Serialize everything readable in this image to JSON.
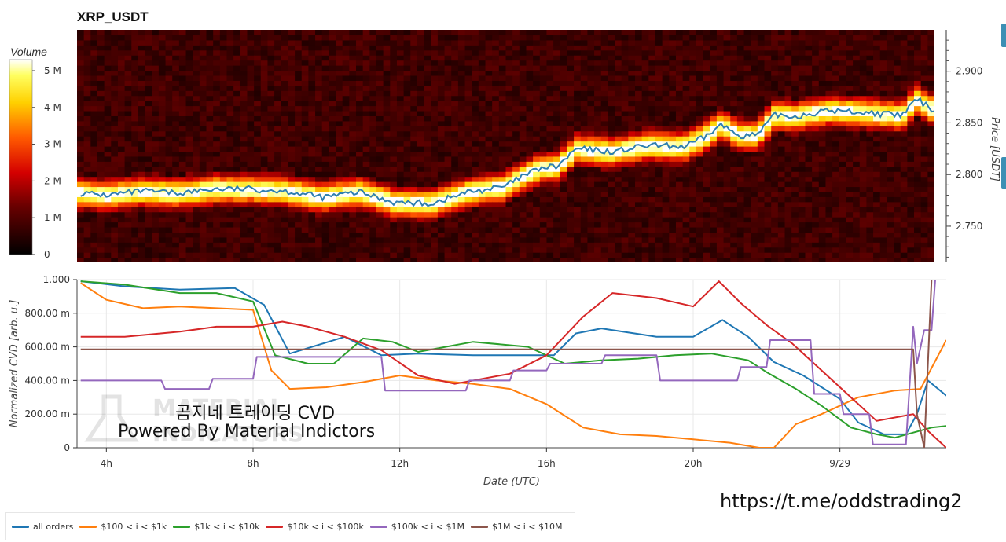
{
  "title": "XRP_USDT",
  "colorbar": {
    "title": "Volume",
    "ticks": [
      "0",
      "1 M",
      "2 M",
      "3 M",
      "4 M",
      "5 M"
    ],
    "tick_values": [
      0,
      1,
      2,
      3,
      4,
      5
    ]
  },
  "top_axis": {
    "label": "Price [USDT]",
    "ticks": [
      "2.750",
      "2.800",
      "2.850",
      "2.900"
    ],
    "tick_values": [
      2.75,
      2.8,
      2.85,
      2.9
    ],
    "ylim": [
      2.715,
      2.94
    ]
  },
  "bottom_axis": {
    "ylabel": "Normalized CVD [arb. u.]",
    "xlabel": "Date (UTC)",
    "yticks": [
      "0",
      "200.00 m",
      "400.00 m",
      "600.00 m",
      "800.00 m",
      "1.000"
    ],
    "ytick_values": [
      0,
      0.2,
      0.4,
      0.6,
      0.8,
      1.0
    ],
    "xticks": [
      "4h",
      "8h",
      "12h",
      "16h",
      "20h",
      "9/29"
    ],
    "xtick_hours": [
      4,
      8,
      12,
      16,
      20,
      24
    ],
    "xlim_hours": [
      3.2,
      26.9
    ],
    "ylim": [
      0,
      1.0
    ]
  },
  "watermark": {
    "line1": "곰지네 트레이딩 CVD",
    "line2": "Powered By Material Indictors"
  },
  "link": "https://t.me/oddstrading2",
  "legend": [
    {
      "label": "all orders",
      "color": "#1f77b4"
    },
    {
      "label": "$100 < i < $1k",
      "color": "#ff7f0e"
    },
    {
      "label": "$1k < i < $10k",
      "color": "#2ca02c"
    },
    {
      "label": "$10k < i < $100k",
      "color": "#d62728"
    },
    {
      "label": "$100k < i < $1M",
      "color": "#9467bd"
    },
    {
      "label": "$1M < i < $10M",
      "color": "#8c564b"
    }
  ],
  "chart_data": [
    {
      "type": "heatmap",
      "title": "XRP_USDT",
      "ylabel": "Price [USDT]",
      "colorbar_label": "Volume",
      "price_line": {
        "color": "#2e7fb0",
        "x_hours": [
          3.3,
          4.0,
          5.0,
          6.0,
          7.0,
          8.0,
          9.0,
          10.0,
          11.0,
          12.0,
          13.0,
          14.0,
          15.0,
          15.5,
          16.0,
          16.5,
          17.0,
          18.0,
          19.0,
          20.0,
          20.5,
          21.0,
          21.5,
          22.0,
          22.5,
          23.0,
          24.0,
          25.0,
          26.0,
          26.4,
          26.9
        ],
        "prices": [
          2.782,
          2.78,
          2.784,
          2.782,
          2.786,
          2.786,
          2.784,
          2.778,
          2.783,
          2.773,
          2.772,
          2.783,
          2.788,
          2.798,
          2.806,
          2.808,
          2.825,
          2.822,
          2.828,
          2.827,
          2.835,
          2.848,
          2.838,
          2.838,
          2.858,
          2.856,
          2.862,
          2.86,
          2.857,
          2.873,
          2.862
        ]
      }
    },
    {
      "type": "line",
      "xlabel": "Date (UTC)",
      "ylabel": "Normalized CVD [arb. u.]",
      "ylim": [
        0,
        1.0
      ],
      "series": [
        {
          "name": "all orders",
          "color": "#1f77b4",
          "x": [
            3.3,
            4.5,
            6.0,
            7.5,
            8.3,
            9.0,
            10.5,
            11.5,
            12.5,
            14.0,
            15.5,
            16.2,
            16.8,
            17.5,
            19.0,
            20.0,
            20.8,
            21.5,
            22.2,
            23.0,
            24.0,
            24.5,
            25.2,
            25.8,
            26.1,
            26.4,
            26.9
          ],
          "y": [
            0.99,
            0.96,
            0.94,
            0.95,
            0.85,
            0.56,
            0.66,
            0.55,
            0.56,
            0.55,
            0.55,
            0.55,
            0.68,
            0.71,
            0.66,
            0.66,
            0.76,
            0.66,
            0.51,
            0.43,
            0.29,
            0.15,
            0.08,
            0.08,
            0.2,
            0.4,
            0.31
          ]
        },
        {
          "name": "$100 < i < $1k",
          "color": "#ff7f0e",
          "x": [
            3.3,
            4.0,
            5.0,
            6.0,
            7.0,
            8.0,
            8.5,
            9.0,
            10.0,
            11.0,
            12.0,
            13.0,
            14.0,
            15.0,
            16.0,
            17.0,
            18.0,
            19.0,
            20.0,
            21.0,
            21.8,
            22.2,
            22.8,
            23.5,
            24.5,
            25.5,
            26.2,
            26.9
          ],
          "y": [
            0.98,
            0.88,
            0.83,
            0.84,
            0.83,
            0.82,
            0.46,
            0.35,
            0.36,
            0.39,
            0.43,
            0.4,
            0.38,
            0.35,
            0.26,
            0.12,
            0.08,
            0.07,
            0.05,
            0.03,
            0.0,
            0.0,
            0.14,
            0.2,
            0.3,
            0.34,
            0.35,
            0.64
          ]
        },
        {
          "name": "$1k < i < $10k",
          "color": "#2ca02c",
          "x": [
            3.3,
            4.5,
            6.0,
            7.0,
            8.0,
            8.6,
            9.5,
            10.2,
            11.0,
            11.8,
            12.5,
            14.0,
            15.5,
            16.5,
            17.5,
            18.5,
            19.5,
            20.5,
            21.5,
            22.0,
            22.8,
            23.5,
            24.3,
            25.0,
            25.5,
            26.0,
            26.5,
            26.9
          ],
          "y": [
            0.99,
            0.97,
            0.92,
            0.92,
            0.87,
            0.55,
            0.5,
            0.5,
            0.65,
            0.63,
            0.57,
            0.63,
            0.6,
            0.5,
            0.52,
            0.53,
            0.55,
            0.56,
            0.52,
            0.45,
            0.35,
            0.25,
            0.12,
            0.08,
            0.06,
            0.09,
            0.12,
            0.13
          ]
        },
        {
          "name": "$10k < i < $100k",
          "color": "#d62728",
          "x": [
            3.3,
            4.5,
            6.0,
            7.0,
            8.0,
            8.8,
            9.5,
            10.5,
            11.5,
            12.5,
            13.5,
            15.0,
            16.0,
            17.0,
            17.8,
            19.0,
            20.0,
            20.7,
            21.3,
            22.0,
            22.7,
            23.8,
            24.5,
            25.0,
            26.0,
            26.4,
            26.9
          ],
          "y": [
            0.66,
            0.66,
            0.69,
            0.72,
            0.72,
            0.75,
            0.72,
            0.66,
            0.58,
            0.43,
            0.38,
            0.44,
            0.55,
            0.78,
            0.92,
            0.89,
            0.84,
            0.99,
            0.86,
            0.73,
            0.62,
            0.4,
            0.26,
            0.16,
            0.2,
            0.1,
            0.0
          ]
        },
        {
          "name": "$100k < i < $1M",
          "color": "#9467bd",
          "x": [
            3.3,
            5.5,
            5.6,
            6.8,
            6.9,
            8.0,
            8.1,
            11.5,
            11.6,
            13.8,
            13.9,
            15.0,
            15.1,
            16.0,
            16.1,
            17.5,
            17.6,
            19.0,
            19.1,
            21.2,
            21.3,
            22.0,
            22.1,
            23.2,
            23.3,
            24.0,
            24.1,
            24.8,
            24.9,
            25.8,
            26.0,
            26.1,
            26.3,
            26.5,
            26.6,
            26.9
          ],
          "y": [
            0.4,
            0.4,
            0.35,
            0.35,
            0.41,
            0.41,
            0.54,
            0.54,
            0.34,
            0.34,
            0.4,
            0.4,
            0.46,
            0.46,
            0.5,
            0.5,
            0.55,
            0.55,
            0.4,
            0.4,
            0.48,
            0.48,
            0.64,
            0.64,
            0.32,
            0.32,
            0.2,
            0.2,
            0.02,
            0.02,
            0.72,
            0.5,
            0.7,
            0.7,
            1.0,
            1.0
          ]
        },
        {
          "name": "$1M < i < $10M",
          "color": "#8c564b",
          "x": [
            3.3,
            26.0,
            26.1,
            26.3,
            26.5,
            26.9
          ],
          "y": [
            0.585,
            0.585,
            0.2,
            0.0,
            1.0,
            1.0
          ]
        }
      ]
    }
  ]
}
